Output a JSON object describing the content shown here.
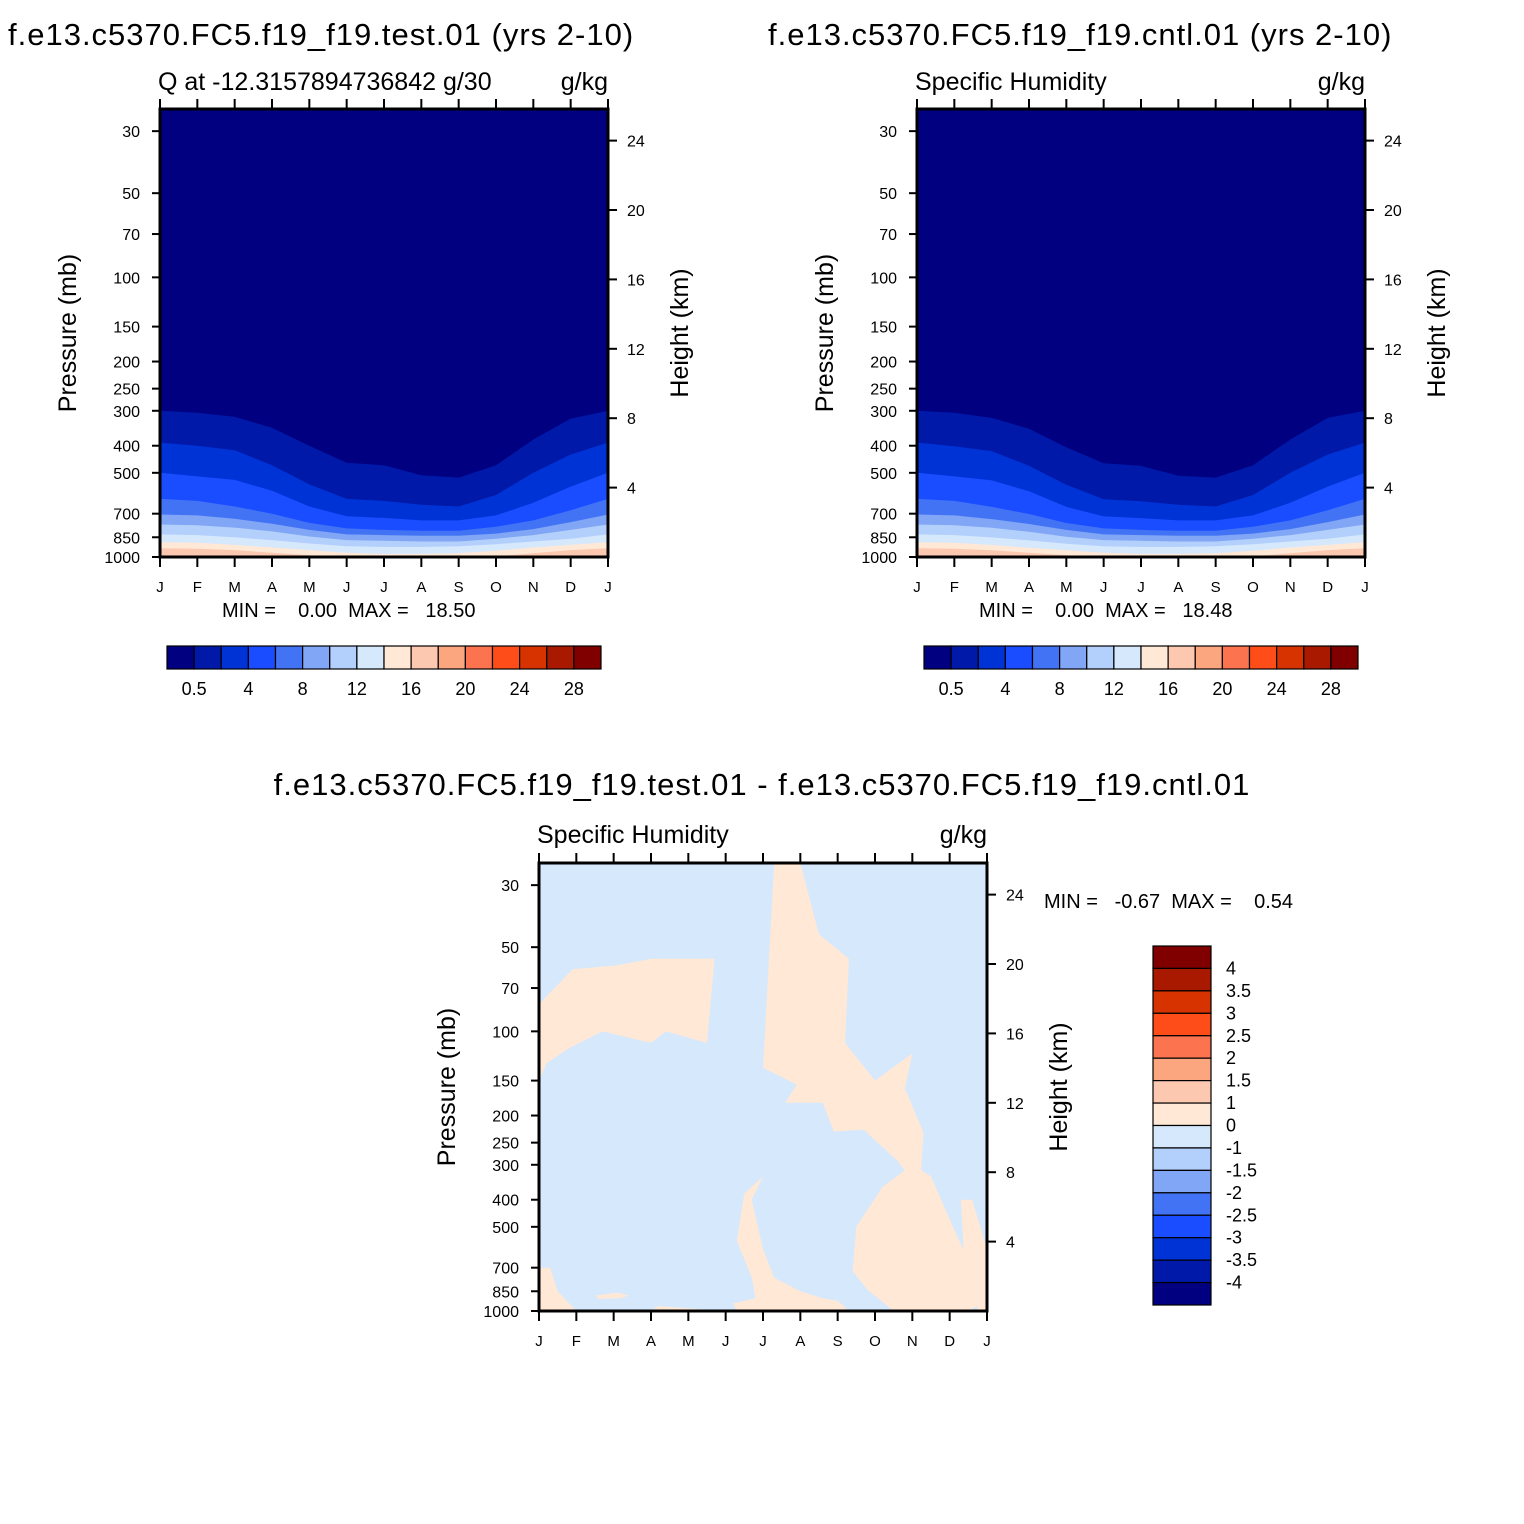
{
  "figure": {
    "top_left_title": "f.e13.c5370.FC5.f19_f19.test.01 (yrs 2-10)",
    "top_right_title": "f.e13.c5370.FC5.f19_f19.cntl.01 (yrs 2-10)",
    "bottom_title": "f.e13.c5370.FC5.f19_f19.test.01 - f.e13.c5370.FC5.f19_f19.cntl.01"
  },
  "colors": {
    "levels": [
      "#000080",
      "#0019a8",
      "#0033d6",
      "#1a4dff",
      "#4373f5",
      "#80a6f5",
      "#b3cffc",
      "#d6e8fc",
      "#ffe8d6",
      "#fcc8b0",
      "#fca680",
      "#fc7350",
      "#ff4d1a",
      "#d63300",
      "#a81900",
      "#800000"
    ]
  },
  "chart_data": [
    {
      "type": "heatmap",
      "subtitle_left": "Q at -12.3157894736842 g/30",
      "subtitle_right": "g/kg",
      "ylabel": "Pressure (mb)",
      "ylabel_right": "Height (km)",
      "x_ticks": [
        "J",
        "F",
        "M",
        "A",
        "M",
        "J",
        "J",
        "A",
        "S",
        "O",
        "N",
        "D",
        "J"
      ],
      "y_ticks": [
        "30",
        "50",
        "70",
        "100",
        "150",
        "200",
        "250",
        "300",
        "400",
        "500",
        "700",
        "850",
        "1000"
      ],
      "y_ticks_right": [
        "24",
        "20",
        "16",
        "12",
        "8",
        "4"
      ],
      "ylim": [
        1000,
        25
      ],
      "log_scale": true,
      "contour_bottoms_mb": [
        [
          300,
          305,
          315,
          345,
          400,
          460,
          470,
          510,
          520,
          470,
          380,
          320,
          300
        ],
        [
          390,
          400,
          415,
          470,
          550,
          620,
          630,
          650,
          660,
          600,
          500,
          430,
          390
        ],
        [
          500,
          515,
          530,
          580,
          660,
          715,
          725,
          740,
          740,
          710,
          640,
          560,
          500
        ],
        [
          620,
          630,
          660,
          700,
          755,
          790,
          800,
          805,
          805,
          780,
          740,
          680,
          620
        ],
        [
          705,
          710,
          730,
          760,
          800,
          830,
          835,
          840,
          840,
          825,
          795,
          750,
          705
        ],
        [
          765,
          770,
          785,
          810,
          845,
          870,
          875,
          880,
          880,
          860,
          835,
          800,
          765
        ],
        [
          830,
          835,
          850,
          870,
          895,
          915,
          920,
          920,
          915,
          900,
          880,
          860,
          830
        ],
        [
          885,
          890,
          905,
          925,
          945,
          965,
          975,
          975,
          970,
          950,
          925,
          905,
          885
        ],
        [
          930,
          935,
          945,
          965,
          985,
          1000,
          1000,
          1000,
          1000,
          995,
          970,
          945,
          930
        ]
      ],
      "min_max": "MIN =    0.00  MAX =   18.50",
      "colorbar_labels": [
        "0.5",
        "4",
        "8",
        "12",
        "16",
        "20",
        "24",
        "28"
      ]
    },
    {
      "type": "heatmap",
      "subtitle_left": "Specific Humidity",
      "subtitle_right": "g/kg",
      "ylabel": "Pressure (mb)",
      "ylabel_right": "Height (km)",
      "x_ticks": [
        "J",
        "F",
        "M",
        "A",
        "M",
        "J",
        "J",
        "A",
        "S",
        "O",
        "N",
        "D",
        "J"
      ],
      "y_ticks": [
        "30",
        "50",
        "70",
        "100",
        "150",
        "200",
        "250",
        "300",
        "400",
        "500",
        "700",
        "850",
        "1000"
      ],
      "y_ticks_right": [
        "24",
        "20",
        "16",
        "12",
        "8",
        "4"
      ],
      "ylim": [
        1000,
        25
      ],
      "log_scale": true,
      "contour_bottoms_mb": [
        [
          300,
          305,
          318,
          348,
          405,
          462,
          472,
          512,
          520,
          470,
          380,
          318,
          300
        ],
        [
          390,
          402,
          418,
          472,
          552,
          622,
          632,
          650,
          660,
          600,
          500,
          430,
          390
        ],
        [
          500,
          515,
          532,
          582,
          662,
          716,
          726,
          740,
          740,
          710,
          640,
          560,
          500
        ],
        [
          620,
          630,
          662,
          702,
          756,
          790,
          800,
          805,
          805,
          780,
          740,
          680,
          620
        ],
        [
          705,
          710,
          732,
          762,
          800,
          830,
          835,
          840,
          840,
          825,
          795,
          750,
          705
        ],
        [
          765,
          770,
          786,
          812,
          846,
          870,
          875,
          880,
          880,
          860,
          835,
          800,
          765
        ],
        [
          830,
          835,
          851,
          872,
          896,
          915,
          920,
          920,
          915,
          900,
          880,
          860,
          830
        ],
        [
          885,
          890,
          906,
          926,
          946,
          965,
          975,
          975,
          970,
          950,
          925,
          905,
          885
        ],
        [
          930,
          935,
          946,
          966,
          986,
          1000,
          1000,
          1000,
          1000,
          995,
          970,
          945,
          930
        ]
      ],
      "min_max": "MIN =    0.00  MAX =   18.48",
      "colorbar_labels": [
        "0.5",
        "4",
        "8",
        "12",
        "16",
        "20",
        "24",
        "28"
      ]
    },
    {
      "type": "heatmap",
      "subtitle_left": "Specific Humidity",
      "subtitle_right": "g/kg",
      "ylabel": "Pressure (mb)",
      "ylabel_right": "Height (km)",
      "x_ticks": [
        "J",
        "F",
        "M",
        "A",
        "M",
        "J",
        "J",
        "A",
        "S",
        "O",
        "N",
        "D",
        "J"
      ],
      "y_ticks": [
        "30",
        "50",
        "70",
        "100",
        "150",
        "200",
        "250",
        "300",
        "400",
        "500",
        "700",
        "850",
        "1000"
      ],
      "y_ticks_right": [
        "24",
        "20",
        "16",
        "12",
        "8",
        "4"
      ],
      "ylim": [
        1000,
        25
      ],
      "log_scale": true,
      "background_level": "0 to -1",
      "positive_regions_level": "0 to 1",
      "positive_regions": [
        [
          [
            0,
            80
          ],
          [
            0.9,
            60
          ],
          [
            2.1,
            58
          ],
          [
            3,
            55
          ],
          [
            4.7,
            55
          ],
          [
            4.5,
            110
          ],
          [
            3.4,
            100
          ],
          [
            3,
            110
          ],
          [
            1.7,
            100
          ],
          [
            0.8,
            115
          ],
          [
            0.2,
            130
          ],
          [
            0,
            150
          ],
          [
            0,
            80
          ]
        ],
        [
          [
            6.3,
            25
          ],
          [
            7,
            25
          ],
          [
            7.5,
            45
          ],
          [
            8.3,
            55
          ],
          [
            8.2,
            110
          ],
          [
            9,
            150
          ],
          [
            10,
            120
          ],
          [
            9.8,
            160
          ],
          [
            10.3,
            230
          ],
          [
            10.2,
            370
          ],
          [
            9.6,
            290
          ],
          [
            8.7,
            225
          ],
          [
            7.9,
            228
          ],
          [
            7.6,
            180
          ],
          [
            6.6,
            180
          ],
          [
            6.9,
            155
          ],
          [
            6,
            135
          ],
          [
            6.3,
            25
          ]
        ],
        [
          [
            0.3,
            700
          ],
          [
            0.5,
            850
          ],
          [
            1,
            1000
          ],
          [
            0,
            1000
          ],
          [
            0,
            700
          ]
        ],
        [
          [
            6,
            330
          ],
          [
            5.7,
            400
          ],
          [
            6,
            600
          ],
          [
            6.3,
            760
          ],
          [
            7,
            850
          ],
          [
            7.6,
            900
          ],
          [
            8,
            920
          ],
          [
            8.3,
            1000
          ],
          [
            5.3,
            1000
          ],
          [
            5.2,
            940
          ],
          [
            5.8,
            900
          ],
          [
            5.7,
            760
          ],
          [
            5.3,
            560
          ],
          [
            5.5,
            380
          ],
          [
            6,
            330
          ]
        ],
        [
          [
            11.2,
            540
          ],
          [
            11.6,
            700
          ],
          [
            12,
            920
          ],
          [
            11.5,
            1000
          ],
          [
            9.5,
            1000
          ],
          [
            8.8,
            840
          ],
          [
            8.4,
            720
          ],
          [
            8.5,
            500
          ],
          [
            9.2,
            360
          ],
          [
            10,
            300
          ],
          [
            10.5,
            330
          ],
          [
            11.2,
            540
          ]
        ],
        [
          [
            2.1,
            860
          ],
          [
            2.4,
            880
          ],
          [
            2.2,
            900
          ],
          [
            1.6,
            905
          ],
          [
            1.5,
            880
          ],
          [
            2.1,
            860
          ]
        ],
        [
          [
            3.2,
            960
          ],
          [
            4.5,
            990
          ],
          [
            4.8,
            1000
          ],
          [
            3,
            1000
          ],
          [
            3.2,
            960
          ]
        ],
        [
          [
            11.6,
            400
          ],
          [
            12,
            600
          ],
          [
            12,
            1000
          ],
          [
            11.7,
            1000
          ],
          [
            11.9,
            880
          ],
          [
            11.4,
            700
          ],
          [
            11.3,
            400
          ],
          [
            11.6,
            400
          ]
        ]
      ],
      "min_max": "MIN =   -0.67  MAX =    0.54",
      "colorbar_labels": [
        "4",
        "3.5",
        "3",
        "2.5",
        "2",
        "1.5",
        "1",
        "0",
        "-1",
        "-1.5",
        "-2",
        "-2.5",
        "-3",
        "-3.5",
        "-4"
      ]
    }
  ]
}
